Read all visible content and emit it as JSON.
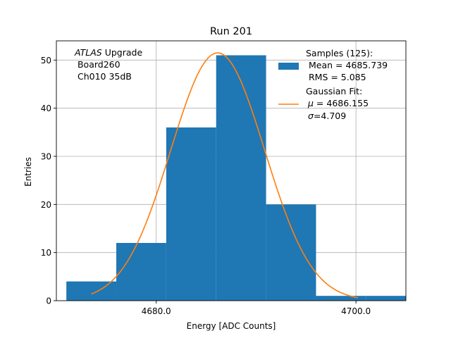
{
  "chart_data": {
    "type": "bar",
    "title": "Run 201",
    "xlabel": "Energy [ADC Counts]",
    "ylabel": "Entries",
    "xlim": [
      4670.0,
      4705.0
    ],
    "ylim": [
      0,
      54
    ],
    "grid": true,
    "x_ticks": [
      {
        "value": 4680.0,
        "label": "4680.0"
      },
      {
        "value": 4700.0,
        "label": "4700.0"
      }
    ],
    "y_ticks": [
      {
        "value": 0,
        "label": "0"
      },
      {
        "value": 10,
        "label": "10"
      },
      {
        "value": 20,
        "label": "20"
      },
      {
        "value": 30,
        "label": "30"
      },
      {
        "value": 40,
        "label": "40"
      },
      {
        "value": 50,
        "label": "50"
      }
    ],
    "histogram": {
      "name": "Samples",
      "color": "#1f77b4",
      "bins": [
        {
          "x0": 4671.0,
          "x1": 4676.0,
          "count": 4
        },
        {
          "x0": 4676.0,
          "x1": 4681.0,
          "count": 12
        },
        {
          "x0": 4681.0,
          "x1": 4686.0,
          "count": 36
        },
        {
          "x0": 4686.0,
          "x1": 4691.0,
          "count": 51
        },
        {
          "x0": 4691.0,
          "x1": 4696.0,
          "count": 20
        },
        {
          "x0": 4696.0,
          "x1": 4701.0,
          "count": 1
        },
        {
          "x0": 4701.0,
          "x1": 4706.0,
          "count": 1
        }
      ]
    },
    "fit": {
      "name": "Gaussian Fit",
      "color": "#ff7f0e",
      "mu": 4686.155,
      "sigma": 4.709,
      "amplitude": 51.5,
      "x_range": [
        4673.5,
        4700.2
      ]
    },
    "annotation": {
      "italic": "ATLAS",
      "rest": " Upgrade",
      "line2": " Board260",
      "line3": " Ch010 35dB"
    },
    "legend": {
      "position": "top-right",
      "samples_title": "Samples (125):",
      "samples_mean": " Mean = 4685.739",
      "samples_rms": " RMS = 5.085",
      "fit_title": "Gaussian Fit:",
      "fit_mu_symbol": "μ",
      "fit_mu_value": " = 4686.155",
      "fit_sigma_symbol": "σ",
      "fit_sigma_value": "=4.709"
    }
  }
}
